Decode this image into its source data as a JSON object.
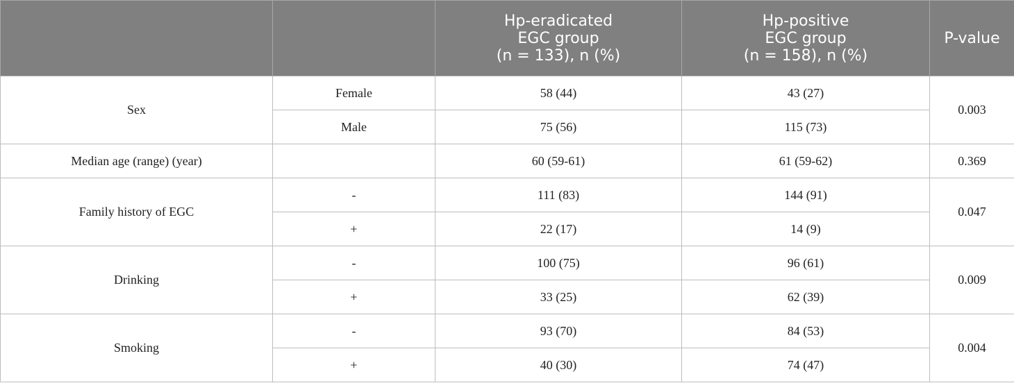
{
  "table": {
    "header": {
      "eradicated": [
        "Hp-eradicated",
        "EGC group",
        "(n = 133), n (%)"
      ],
      "positive": [
        "Hp-positive",
        "EGC group",
        "(n = 158), n (%)"
      ],
      "p_value": "P-value"
    },
    "groups": [
      {
        "label": "Sex",
        "p": "0.003",
        "rows": [
          {
            "level": "Female",
            "a": "58 (44)",
            "b": "43 (27)"
          },
          {
            "level": "Male",
            "a": "75 (56)",
            "b": "115 (73)"
          }
        ]
      },
      {
        "label": "Median age (range) (year)",
        "p": "0.369",
        "rows": [
          {
            "a": "60 (59-61)",
            "b": "61 (59-62)"
          }
        ]
      },
      {
        "label": "Family history of EGC",
        "p": "0.047",
        "rows": [
          {
            "level": "-",
            "a": "111 (83)",
            "b": "144 (91)"
          },
          {
            "level": "+",
            "a": "22 (17)",
            "b": "14 (9)"
          }
        ]
      },
      {
        "label": "Drinking",
        "p": "0.009",
        "rows": [
          {
            "level": "-",
            "a": "100 (75)",
            "b": "96 (61)"
          },
          {
            "level": "+",
            "a": "33 (25)",
            "b": "62 (39)"
          }
        ]
      },
      {
        "label": "Smoking",
        "p": "0.004",
        "rows": [
          {
            "level": "-",
            "a": "93 (70)",
            "b": "84 (53)"
          },
          {
            "level": "+",
            "a": "40 (30)",
            "b": "74 (47)"
          }
        ]
      }
    ]
  }
}
